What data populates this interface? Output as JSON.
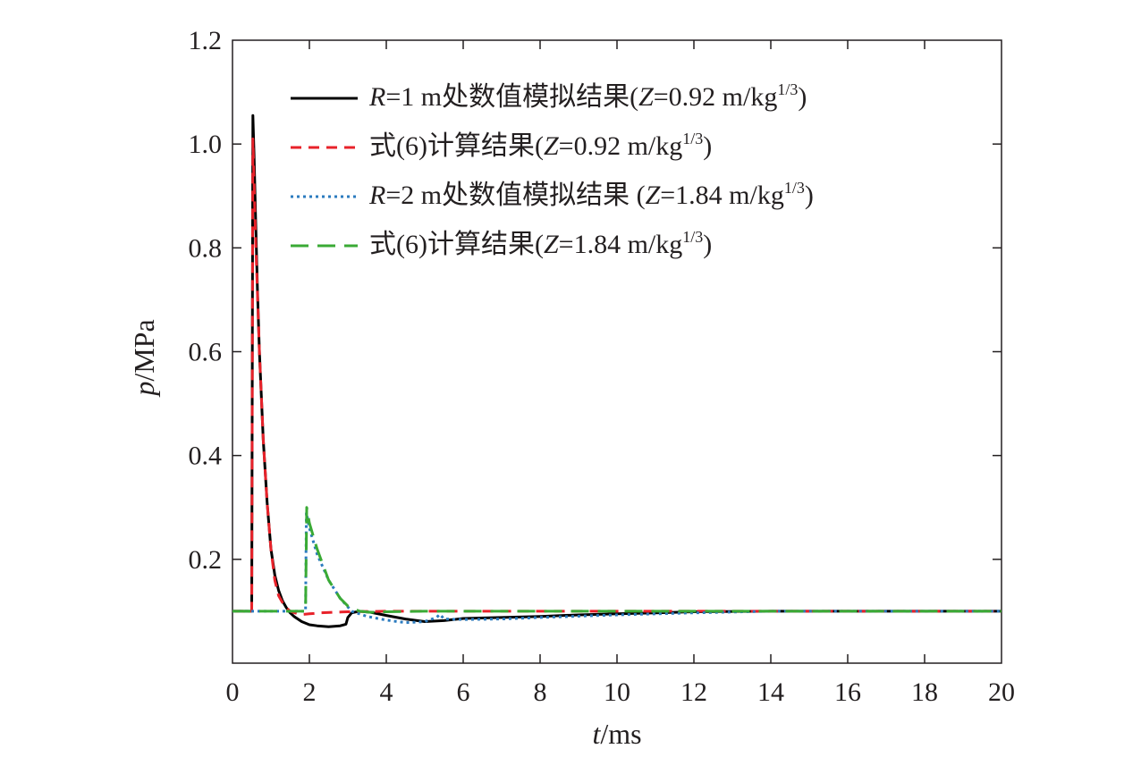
{
  "chart_data": {
    "type": "line",
    "xlabel": "t/ms",
    "ylabel": "p/MPa",
    "xlim": [
      0,
      20
    ],
    "ylim": [
      0,
      1.2
    ],
    "xticks": [
      0,
      2,
      4,
      6,
      8,
      10,
      12,
      14,
      16,
      18,
      20
    ],
    "yticks": [
      0.2,
      0.4,
      0.6,
      0.8,
      1.0,
      1.2
    ],
    "xtick_labels": [
      "0",
      "2",
      "4",
      "6",
      "8",
      "10",
      "12",
      "14",
      "16",
      "18",
      "20"
    ],
    "ytick_labels": [
      "0.2",
      "0.4",
      "0.6",
      "0.8",
      "1.0",
      "1.2"
    ],
    "grid": false,
    "legend_position": "top-right",
    "series": [
      {
        "name": "R=1 m处数值模拟结果(Z=0.92 m/kg1/3)",
        "color": "#000000",
        "style": "solid",
        "x": [
          0,
          0.5,
          0.53,
          0.56,
          0.6,
          0.65,
          0.7,
          0.8,
          0.9,
          1.0,
          1.1,
          1.2,
          1.3,
          1.4,
          1.5,
          1.6,
          1.8,
          2.0,
          2.2,
          2.5,
          2.8,
          2.95,
          3.0,
          3.1,
          3.3,
          3.6,
          4.0,
          4.5,
          5.0,
          5.5,
          6.0,
          7.0,
          8.0,
          9.0,
          10.0,
          11.0,
          12.0,
          14.0,
          16.0,
          18.0,
          20.0
        ],
        "y": [
          0.1,
          0.1,
          1.055,
          0.98,
          0.86,
          0.72,
          0.6,
          0.43,
          0.31,
          0.22,
          0.17,
          0.14,
          0.12,
          0.107,
          0.097,
          0.09,
          0.08,
          0.074,
          0.072,
          0.07,
          0.072,
          0.075,
          0.088,
          0.097,
          0.1,
          0.098,
          0.092,
          0.085,
          0.08,
          0.082,
          0.086,
          0.088,
          0.09,
          0.093,
          0.095,
          0.097,
          0.099,
          0.1,
          0.1,
          0.1,
          0.1
        ]
      },
      {
        "name": "式(6)计算结果(Z=0.92 m/kg1/3)",
        "color": "#e8222a",
        "style": "dashed",
        "x": [
          0,
          0.5,
          0.53,
          0.6,
          0.7,
          0.8,
          0.9,
          1.0,
          1.1,
          1.2,
          1.35,
          1.5,
          1.7,
          1.85,
          2.0,
          2.3,
          2.6,
          3.0,
          4.0,
          6.0,
          10.0,
          20.0
        ],
        "y": [
          0.1,
          0.1,
          1.01,
          0.82,
          0.6,
          0.43,
          0.31,
          0.22,
          0.16,
          0.13,
          0.11,
          0.1,
          0.095,
          0.094,
          0.095,
          0.097,
          0.098,
          0.099,
          0.1,
          0.1,
          0.1,
          0.1
        ]
      },
      {
        "name": "R=2 m处数值模拟结果 (Z=1.84 m/kg1/3)",
        "color": "#2b7bbf",
        "style": "dotted",
        "x": [
          0,
          1.9,
          1.92,
          2.0,
          2.2,
          2.5,
          2.8,
          3.1,
          3.5,
          4.0,
          4.5,
          5.0,
          5.3,
          5.4,
          5.5,
          6.0,
          7.0,
          8.0,
          10.0,
          12.0,
          14.0,
          16.0,
          18.0,
          20.0
        ],
        "y": [
          0.1,
          0.1,
          0.29,
          0.26,
          0.21,
          0.16,
          0.125,
          0.1,
          0.09,
          0.083,
          0.078,
          0.08,
          0.088,
          0.094,
          0.085,
          0.084,
          0.085,
          0.088,
          0.093,
          0.097,
          0.1,
          0.1,
          0.1,
          0.1
        ]
      },
      {
        "name": "式(6)计算结果(Z=1.84 m/kg1/3)",
        "color": "#3aaa35",
        "style": "longdash",
        "x": [
          0,
          1.9,
          1.93,
          2.0,
          2.2,
          2.5,
          2.8,
          3.0,
          3.3,
          3.6,
          4.0,
          5.0,
          6.0,
          10.0,
          20.0
        ],
        "y": [
          0.1,
          0.1,
          0.3,
          0.27,
          0.22,
          0.16,
          0.125,
          0.11,
          0.1,
          0.098,
          0.099,
          0.1,
          0.1,
          0.1,
          0.1
        ]
      }
    ],
    "legend_entries": [
      {
        "text_parts": [
          "R",
          "=1 m处数值模拟结果(",
          "Z",
          "=0.92 m/kg",
          "1/3",
          ")"
        ]
      },
      {
        "text_parts": [
          "",
          "式(6)计算结果(",
          "Z",
          "=0.92 m/kg",
          "1/3",
          ")"
        ]
      },
      {
        "text_parts": [
          "R",
          "=2 m处数值模拟结果 (",
          "Z",
          "=1.84 m/kg",
          "1/3",
          ")"
        ]
      },
      {
        "text_parts": [
          "",
          "式(6)计算结果(",
          "Z",
          "=1.84 m/kg",
          "1/3",
          ")"
        ]
      }
    ]
  }
}
